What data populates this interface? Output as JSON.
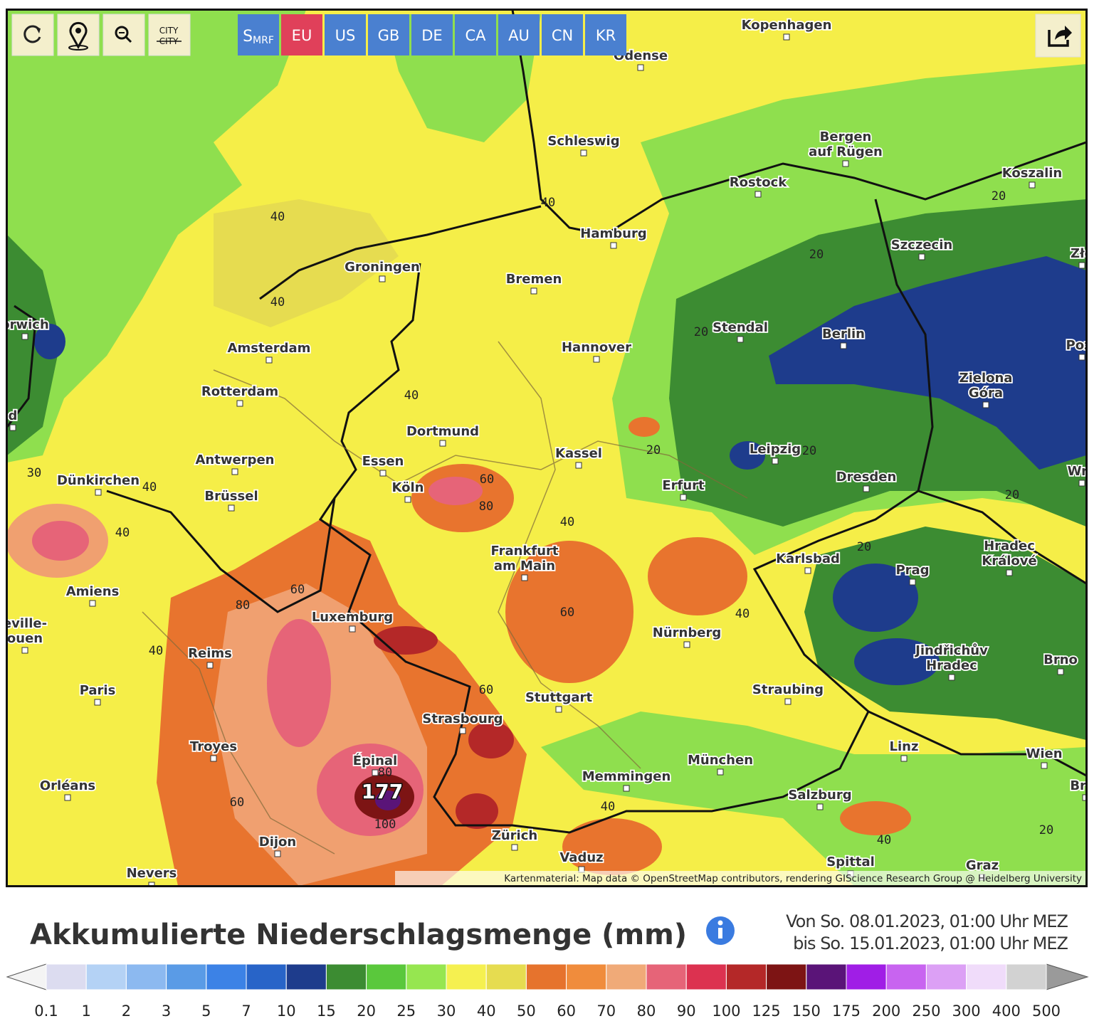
{
  "toolbar": {
    "city_button": [
      "CITY",
      "CITY"
    ],
    "regions": [
      {
        "main": "S",
        "sub": "MRF"
      },
      "EU",
      "US",
      "GB",
      "DE",
      "CA",
      "AU",
      "CN",
      "KR"
    ],
    "active_region": "EU",
    "active_color": "#e0405a",
    "region_color": "#4a80d0"
  },
  "map": {
    "cities": [
      {
        "name": "Kopenhagen"
      },
      {
        "name": "Odense"
      },
      {
        "name": "Schleswig"
      },
      {
        "lines": [
          "Bergen",
          "auf Rügen"
        ]
      },
      {
        "name": "Koszalin"
      },
      {
        "name": "Rostock"
      },
      {
        "name": "Hamburg"
      },
      {
        "name": "Szczecin"
      },
      {
        "name": "Zło"
      },
      {
        "name": "Groningen"
      },
      {
        "name": "Bremen"
      },
      {
        "name": "orwich"
      },
      {
        "name": "Stendal"
      },
      {
        "name": "Berlin"
      },
      {
        "name": "Pozr"
      },
      {
        "name": "Amsterdam"
      },
      {
        "name": "Hannover"
      },
      {
        "lines": [
          "Zielona",
          "Góra"
        ]
      },
      {
        "name": "Rotterdam"
      },
      {
        "name": "d"
      },
      {
        "name": "Dortmund"
      },
      {
        "name": "Kassel"
      },
      {
        "name": "Leipzig"
      },
      {
        "name": "Essen"
      },
      {
        "name": "Antwerpen"
      },
      {
        "name": "Dresden"
      },
      {
        "name": "Wro"
      },
      {
        "name": "Dünkirchen"
      },
      {
        "name": "Köln"
      },
      {
        "name": "Erfurt"
      },
      {
        "name": "Brüssel"
      },
      {
        "lines": [
          "Frankfurt",
          "am Main"
        ]
      },
      {
        "name": "Karlsbad"
      },
      {
        "name": "Prag"
      },
      {
        "lines": [
          "Hradec",
          "Králové"
        ]
      },
      {
        "name": "Amiens"
      },
      {
        "name": "Luxemburg"
      },
      {
        "name": "Nürnberg"
      },
      {
        "lines": [
          "eville-",
          "ouen"
        ]
      },
      {
        "name": "Reims"
      },
      {
        "lines": [
          "Jindřichův",
          "Hradec"
        ]
      },
      {
        "name": "Brno"
      },
      {
        "name": "Paris"
      },
      {
        "name": "Stuttgart"
      },
      {
        "name": "Straubing"
      },
      {
        "name": "Strasbourg"
      },
      {
        "name": "Troyes"
      },
      {
        "name": "Linz"
      },
      {
        "name": "Wien"
      },
      {
        "name": "München"
      },
      {
        "name": "Épinal"
      },
      {
        "name": "Memmingen"
      },
      {
        "name": "Orléans"
      },
      {
        "name": "Brat"
      },
      {
        "name": "Salzburg"
      },
      {
        "name": "Zürich"
      },
      {
        "name": "Dijon"
      },
      {
        "name": "Vaduz"
      },
      {
        "name": "Nevers"
      },
      {
        "name": "Spittal"
      },
      {
        "name": "Graz"
      }
    ],
    "contour_labels": [
      40,
      40,
      20,
      20,
      20,
      40,
      20,
      20,
      60,
      80,
      40,
      20,
      20,
      40,
      40,
      60,
      80,
      40,
      60,
      40,
      60,
      80,
      60,
      100,
      40,
      40,
      20,
      30,
      40
    ],
    "max_label": 177,
    "attribution": "Kartenmaterial: Map data © OpenStreetMap contributors, rendering GIScience Research Group @ Heidelberg University"
  },
  "legend": {
    "title": "Akkumulierte Niederschlagsmenge (mm)",
    "period": [
      "Von So. 08.01.2023, 01:00 Uhr MEZ",
      "bis So. 15.01.2023, 01:00 Uhr MEZ"
    ],
    "ticks": [
      0.1,
      1,
      2,
      3,
      5,
      7,
      10,
      15,
      20,
      25,
      30,
      40,
      50,
      60,
      70,
      80,
      90,
      100,
      125,
      150,
      175,
      200,
      250,
      300,
      400,
      500
    ],
    "colors": [
      "#dcdcf0",
      "#b4d2f5",
      "#8cb9f0",
      "#5a9be6",
      "#3c82e6",
      "#2864c8",
      "#1e3c8c",
      "#3c8c32",
      "#5ac83c",
      "#96e650",
      "#f5f050",
      "#e6dc50",
      "#e6732d",
      "#f08c3c",
      "#f0aa78",
      "#e66478",
      "#dc3250",
      "#b42828",
      "#7d1414",
      "#5a1478",
      "#a01ee6",
      "#c864f0",
      "#dca0f5",
      "#f0dcfa",
      "#d2d2d2"
    ],
    "low_color": "#f4f4f4",
    "high_color": "#9a9a9a"
  }
}
